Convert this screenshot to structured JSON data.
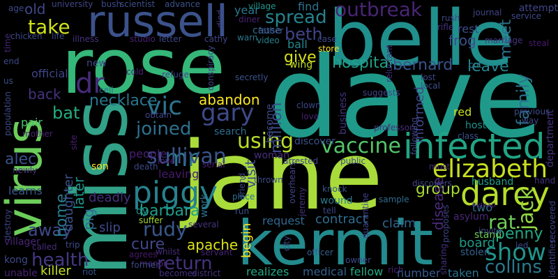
{
  "words": [
    {
      "text": "dave",
      "color": "#1f9a8a"
    },
    {
      "text": "jane",
      "color": "#a9dc3a"
    },
    {
      "text": "rose",
      "color": "#35b779"
    },
    {
      "text": "belle",
      "color": "#20908d"
    },
    {
      "text": "kermit",
      "color": "#238a8d"
    },
    {
      "text": "miss",
      "color": "#31a187"
    },
    {
      "text": "virus",
      "color": "#6ccd5a"
    },
    {
      "text": "russell",
      "color": "#3b528b"
    },
    {
      "text": "infected",
      "color": "#21a585"
    },
    {
      "text": "darcy",
      "color": "#b5de2b"
    },
    {
      "text": "piggy",
      "color": "#26818e"
    },
    {
      "text": "elizabeth",
      "color": "#c8e020"
    },
    {
      "text": "vaccine",
      "color": "#54c568"
    },
    {
      "text": "gary",
      "color": "#3e4a89"
    },
    {
      "text": "vic",
      "color": "#2c738e"
    },
    {
      "text": "outbreak",
      "color": "#482475"
    },
    {
      "text": "spread",
      "color": "#26828e"
    },
    {
      "text": "mr",
      "color": "#2a788e"
    },
    {
      "text": "dr",
      "color": "#472a7a"
    },
    {
      "text": "show",
      "color": "#1f958b"
    },
    {
      "text": "take",
      "color": "#d0e11c"
    },
    {
      "text": "sullivan",
      "color": "#3a538b"
    },
    {
      "text": "using",
      "color": "#b8de29"
    },
    {
      "text": "joined",
      "color": "#2d708e"
    },
    {
      "text": "rudy",
      "color": "#38588c"
    },
    {
      "text": "barbara",
      "color": "#1f9e89"
    },
    {
      "text": "beth",
      "color": "#414487"
    },
    {
      "text": "return",
      "color": "#46337e"
    },
    {
      "text": "collins",
      "color": "#2a788e"
    },
    {
      "text": "necklace",
      "color": "#2a768e"
    },
    {
      "text": "health",
      "color": "#443983"
    },
    {
      "text": "family",
      "color": "#2c728e"
    },
    {
      "text": "group",
      "color": "#a8db34"
    },
    {
      "text": "jack",
      "color": "#90d743"
    },
    {
      "text": "away",
      "color": "#3e4989"
    },
    {
      "text": "hospital",
      "color": "#1fa187"
    },
    {
      "text": "contract",
      "color": "#2f6c8e"
    },
    {
      "text": "cure",
      "color": "#404688"
    },
    {
      "text": "apache",
      "color": "#dde318"
    },
    {
      "text": "rat",
      "color": "#6ece58"
    },
    {
      "text": "bat",
      "color": "#26ad81"
    },
    {
      "text": "alec",
      "color": "#3b528b"
    },
    {
      "text": "penny",
      "color": "#22a884"
    },
    {
      "text": "leave",
      "color": "#25848e"
    },
    {
      "text": "bernard",
      "color": "#3a548c"
    },
    {
      "text": "give",
      "color": "#d8e219"
    },
    {
      "text": "abandon",
      "color": "#fde725"
    },
    {
      "text": "meet",
      "color": "#2d718e"
    },
    {
      "text": "back",
      "color": "#46327e"
    },
    {
      "text": "home",
      "color": "#297a8e"
    },
    {
      "text": "daughter",
      "color": "#3b528b"
    },
    {
      "text": "later",
      "color": "#1f988b"
    },
    {
      "text": "pig",
      "color": "#2e6e8e"
    },
    {
      "text": "begin",
      "color": "#fde725"
    },
    {
      "text": "visit",
      "color": "#3e4c8a"
    },
    {
      "text": "million",
      "color": "#3e4c8a"
    },
    {
      "text": "disease",
      "color": "#4c2a7d"
    },
    {
      "text": "informed",
      "color": "#404688"
    },
    {
      "text": "board",
      "color": "#1e9c89"
    },
    {
      "text": "realizes",
      "color": "#22a785"
    },
    {
      "text": "medical",
      "color": "#34608d"
    },
    {
      "text": "fellow",
      "color": "#22a884"
    },
    {
      "text": "number",
      "color": "#375b8d"
    },
    {
      "text": "taken",
      "color": "#2c728e"
    },
    {
      "text": "killer",
      "color": "#c5e021"
    },
    {
      "text": "deadly",
      "color": "#46307e"
    },
    {
      "text": "leaving",
      "color": "#48196b"
    },
    {
      "text": "slip",
      "color": "#3e4a89"
    },
    {
      "text": "claim",
      "color": "#31678e"
    },
    {
      "text": "two",
      "color": "#2f6b8e"
    },
    {
      "text": "request",
      "color": "#31688e"
    },
    {
      "text": "frog",
      "color": "#3d4e8a"
    },
    {
      "text": "rest",
      "color": "#3d4e8a"
    },
    {
      "text": "red",
      "color": "#c8e020"
    },
    {
      "text": "host",
      "color": "#21918c"
    },
    {
      "text": "search",
      "color": "#2e6d8e"
    },
    {
      "text": "son",
      "color": "#fde725"
    },
    {
      "text": "woman",
      "color": "#472f7d"
    },
    {
      "text": "become",
      "color": "#3e4989"
    },
    {
      "text": "husband",
      "color": "#1f9f88"
    },
    {
      "text": "department",
      "color": "#46337e"
    },
    {
      "text": "learns",
      "color": "#38588c"
    },
    {
      "text": "old",
      "color": "#3f4788"
    },
    {
      "text": "official",
      "color": "#404588"
    },
    {
      "text": "pair",
      "color": "#4ac16d"
    },
    {
      "text": "new",
      "color": "#3e4a89"
    },
    {
      "text": "find",
      "color": "#2c738e"
    },
    {
      "text": "ball",
      "color": "#23898e"
    },
    {
      "text": "wing",
      "color": "#c2df23"
    },
    {
      "text": "cause",
      "color": "#2e6f8e"
    },
    {
      "text": "people",
      "color": "#482173"
    },
    {
      "text": "dy",
      "color": "#21918c"
    },
    {
      "text": "work",
      "color": "#2d708e"
    },
    {
      "text": "stand",
      "color": "#6ece58"
    },
    {
      "text": "stolen",
      "color": "#34608d"
    },
    {
      "text": "led",
      "color": "#3e4989"
    },
    {
      "text": "year",
      "color": "#2a788e"
    },
    {
      "text": "business",
      "color": "#46337e"
    },
    {
      "text": "store",
      "color": "#fde725"
    },
    {
      "text": "wound",
      "color": "#297b8e"
    },
    {
      "text": "tell",
      "color": "#3e4989"
    },
    {
      "text": "knock",
      "color": "#38588c"
    },
    {
      "text": "sample",
      "color": "#2f6b8e"
    },
    {
      "text": "attempt",
      "color": "#404688"
    },
    {
      "text": "steal",
      "color": "#48196b"
    },
    {
      "text": "hand",
      "color": "#46337e"
    },
    {
      "text": "invite",
      "color": "#3e4989"
    },
    {
      "text": "kidnap",
      "color": "#482173"
    },
    {
      "text": "asylum",
      "color": "#482878"
    },
    {
      "text": "run",
      "color": "#3b528b"
    },
    {
      "text": "place",
      "color": "#2c728e"
    },
    {
      "text": "thrown",
      "color": "#3e4a89"
    },
    {
      "text": "must",
      "color": "#472d7b"
    },
    {
      "text": "arrested",
      "color": "#414487"
    },
    {
      "text": "public",
      "color": "#3e4a89"
    },
    {
      "text": "discover",
      "color": "#3b528b"
    },
    {
      "text": "professor",
      "color": "#472d7b"
    },
    {
      "text": "death",
      "color": "#3e4989"
    },
    {
      "text": "suffer",
      "color": "#a2da37"
    },
    {
      "text": "several",
      "color": "#46337e"
    },
    {
      "text": "agrees",
      "color": "#48186a"
    },
    {
      "text": "manor",
      "color": "#482475"
    },
    {
      "text": "becomes",
      "color": "#46307e"
    },
    {
      "text": "district",
      "color": "#46327e"
    },
    {
      "text": "former",
      "color": "#3e4a89"
    },
    {
      "text": "whilst",
      "color": "#472c7a"
    },
    {
      "text": "servant",
      "color": "#482475"
    },
    {
      "text": "officer",
      "color": "#355f8d"
    },
    {
      "text": "rich",
      "color": "#482374"
    },
    {
      "text": "owner",
      "color": "#3e4989"
    },
    {
      "text": "kong",
      "color": "#3e4989"
    },
    {
      "text": "unable",
      "color": "#482374"
    },
    {
      "text": "villager",
      "color": "#482475"
    },
    {
      "text": "called",
      "color": "#472d7b"
    },
    {
      "text": "trip",
      "color": "#3e4a89"
    },
    {
      "text": "riot",
      "color": "#3b528b"
    },
    {
      "text": "chicken",
      "color": "#3e4989"
    },
    {
      "text": "life",
      "color": "#3e4a89"
    },
    {
      "text": "university",
      "color": "#404588"
    },
    {
      "text": "bush",
      "color": "#3e4989"
    },
    {
      "text": "scientist",
      "color": "#3d4e8a"
    },
    {
      "text": "advance",
      "color": "#3b528b"
    },
    {
      "text": "illness",
      "color": "#46337e"
    },
    {
      "text": "studio",
      "color": "#482173"
    },
    {
      "text": "letter",
      "color": "#3e4989"
    },
    {
      "text": "cathy",
      "color": "#404588"
    },
    {
      "text": "video",
      "color": "#26828e"
    },
    {
      "text": "warn",
      "color": "#2c738e"
    },
    {
      "text": "father",
      "color": "#3e4a89"
    },
    {
      "text": "village",
      "color": "#1f978b"
    },
    {
      "text": "diner",
      "color": "#482173"
    },
    {
      "text": "died",
      "color": "#404588"
    },
    {
      "text": "case",
      "color": "#3e4989"
    },
    {
      "text": "rush",
      "color": "#404688"
    },
    {
      "text": "rifle",
      "color": "#46327e"
    },
    {
      "text": "journal",
      "color": "#404588"
    },
    {
      "text": "service",
      "color": "#3e4989"
    },
    {
      "text": "marriage",
      "color": "#46337e"
    },
    {
      "text": "cut",
      "color": "#2a788e"
    },
    {
      "text": "lost",
      "color": "#404688"
    },
    {
      "text": "local",
      "color": "#3b528b"
    },
    {
      "text": "previous",
      "color": "#3e4a89"
    },
    {
      "text": "way",
      "color": "#3e4989"
    },
    {
      "text": "class",
      "color": "#3b528b"
    },
    {
      "text": "clown",
      "color": "#3e4989"
    },
    {
      "text": "love",
      "color": "#482071"
    },
    {
      "text": "suggests",
      "color": "#404588"
    },
    {
      "text": "conspiracy",
      "color": "#404588"
    },
    {
      "text": "secretly",
      "color": "#3b528b"
    },
    {
      "text": "refuge",
      "color": "#404688"
    },
    {
      "text": "cold",
      "color": "#482173"
    },
    {
      "text": "cell",
      "color": "#2c728e"
    },
    {
      "text": "obtain",
      "color": "#404688"
    },
    {
      "text": "age",
      "color": "#3e4989"
    },
    {
      "text": "time",
      "color": "#482878"
    },
    {
      "text": "end",
      "color": "#3e4989"
    },
    {
      "text": "us",
      "color": "#3b528b"
    },
    {
      "text": "population",
      "color": "#3e4989"
    },
    {
      "text": "mother",
      "color": "#482374"
    },
    {
      "text": "site",
      "color": "#482173"
    },
    {
      "text": "newly",
      "color": "#472d7b"
    },
    {
      "text": "destroy",
      "color": "#404588"
    },
    {
      "text": "love",
      "color": "#482071"
    },
    {
      "text": "friend",
      "color": "#3e4989"
    },
    {
      "text": "serial",
      "color": "#482475"
    },
    {
      "text": "jeremy",
      "color": "#46337e"
    },
    {
      "text": "quarantine",
      "color": "#414487"
    },
    {
      "text": "overhears",
      "color": "#404588"
    },
    {
      "text": "city",
      "color": "#404588"
    },
    {
      "text": "discovers",
      "color": "#404588"
    },
    {
      "text": "proposes",
      "color": "#404588"
    },
    {
      "text": "reluctant",
      "color": "#46337e"
    },
    {
      "text": "sharing",
      "color": "#46337e"
    },
    {
      "text": "recovered",
      "color": "#404588"
    },
    {
      "text": "identifies",
      "color": "#404588"
    },
    {
      "text": "following",
      "color": "#404588"
    }
  ]
}
